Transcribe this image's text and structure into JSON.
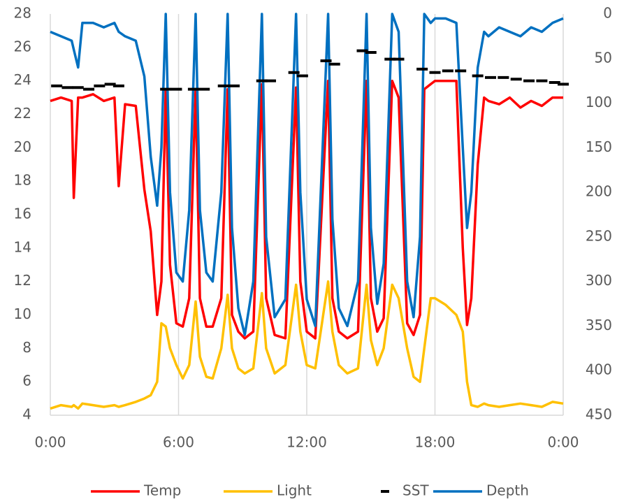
{
  "chart_data": {
    "type": "line",
    "x": [
      0,
      0.5,
      1.0,
      1.1,
      1.3,
      1.5,
      2.0,
      2.5,
      3.0,
      3.2,
      3.5,
      4.0,
      4.4,
      4.7,
      5.0,
      5.2,
      5.4,
      5.6,
      5.9,
      6.2,
      6.5,
      6.8,
      7.0,
      7.3,
      7.6,
      8.0,
      8.3,
      8.5,
      8.8,
      9.1,
      9.5,
      9.9,
      10.1,
      10.5,
      11.0,
      11.5,
      11.7,
      12.0,
      12.4,
      13.0,
      13.2,
      13.5,
      13.9,
      14.4,
      14.8,
      15.0,
      15.3,
      15.6,
      16.0,
      16.3,
      16.7,
      17.0,
      17.3,
      17.5,
      17.8,
      18.0,
      18.5,
      19.0,
      19.3,
      19.5,
      19.7,
      20.0,
      20.3,
      20.5,
      21.0,
      21.5,
      22.0,
      22.5,
      23.0,
      23.5,
      24.0
    ],
    "series": [
      {
        "name": "Temp",
        "color": "#ff0000",
        "values": [
          22.8,
          23,
          22.8,
          17,
          23,
          23,
          23.2,
          22.8,
          23,
          17.7,
          22.6,
          22.5,
          17.5,
          15,
          10,
          12,
          23.5,
          13,
          9.5,
          9.3,
          11,
          23.5,
          11,
          9.3,
          9.3,
          11,
          23.5,
          10,
          9,
          8.6,
          9,
          23.8,
          11,
          8.8,
          8.6,
          23.6,
          12,
          9,
          8.6,
          24,
          11,
          9,
          8.6,
          9,
          24,
          11,
          9,
          9.8,
          24,
          23,
          9.5,
          8.8,
          10,
          23.5,
          23.8,
          24,
          24,
          24,
          14,
          9.4,
          11,
          19,
          23,
          22.8,
          22.6,
          23,
          22.4,
          22.8,
          22.5,
          23,
          23
        ]
      },
      {
        "name": "Light",
        "color": "#ffc000",
        "values": [
          4.4,
          4.6,
          4.5,
          4.6,
          4.4,
          4.7,
          4.6,
          4.5,
          4.6,
          4.5,
          4.6,
          4.8,
          5,
          5.2,
          6,
          9.5,
          9.3,
          8,
          7,
          6.2,
          7,
          10.8,
          7.5,
          6.3,
          6.2,
          8,
          11.2,
          8,
          6.8,
          6.5,
          6.8,
          11.3,
          8,
          6.5,
          7,
          11.8,
          9,
          7,
          6.8,
          12,
          9,
          7,
          6.5,
          6.8,
          11.8,
          8.5,
          7,
          8,
          11.8,
          11,
          8,
          6.3,
          6,
          8,
          11,
          11,
          10.6,
          10,
          9,
          6,
          4.6,
          4.5,
          4.7,
          4.6,
          4.5,
          4.6,
          4.7,
          4.6,
          4.5,
          4.8,
          4.7
        ]
      },
      {
        "name": "SST",
        "color": "#000000",
        "marker": "dash",
        "x": [
          0.3,
          0.8,
          1.3,
          1.8,
          2.3,
          2.8,
          3.2,
          5.4,
          5.9,
          6.7,
          7.2,
          8.1,
          8.6,
          9.9,
          10.3,
          11.4,
          11.8,
          12.9,
          13.3,
          14.6,
          15.0,
          15.9,
          16.3,
          17.4,
          18.0,
          18.6,
          19.2,
          20.0,
          20.6,
          21.2,
          21.8,
          22.4,
          23.0,
          23.6,
          24.0
        ],
        "values": [
          23.7,
          23.6,
          23.6,
          23.5,
          23.7,
          23.8,
          23.7,
          23.5,
          23.5,
          23.5,
          23.5,
          23.7,
          23.7,
          24.0,
          24.0,
          24.5,
          24.3,
          25.2,
          25.0,
          25.8,
          25.7,
          25.3,
          25.3,
          24.7,
          24.5,
          24.6,
          24.6,
          24.3,
          24.2,
          24.2,
          24.1,
          24.0,
          24.0,
          23.9,
          23.8
        ]
      },
      {
        "name": "Depth",
        "color": "#0070c0",
        "axis": "y2",
        "values": [
          20,
          25,
          30,
          40,
          60,
          10,
          10,
          15,
          10,
          20,
          25,
          30,
          70,
          160,
          215,
          150,
          0,
          200,
          290,
          300,
          220,
          0,
          220,
          290,
          300,
          200,
          0,
          240,
          330,
          360,
          300,
          0,
          250,
          340,
          320,
          0,
          200,
          320,
          350,
          0,
          230,
          330,
          350,
          300,
          0,
          240,
          325,
          280,
          0,
          20,
          300,
          340,
          250,
          0,
          10,
          5,
          5,
          10,
          150,
          240,
          200,
          60,
          20,
          25,
          15,
          20,
          25,
          15,
          20,
          10,
          5
        ]
      }
    ],
    "xlim": [
      0,
      24
    ],
    "xticks": [
      {
        "value": 0,
        "label": "0:00"
      },
      {
        "value": 6,
        "label": "6:00"
      },
      {
        "value": 12,
        "label": "12:00"
      },
      {
        "value": 18,
        "label": "18:00"
      },
      {
        "value": 24,
        "label": "0:00"
      }
    ],
    "ylim": [
      4,
      28
    ],
    "yticks": [
      4,
      6,
      8,
      10,
      12,
      14,
      16,
      18,
      20,
      22,
      24,
      26,
      28
    ],
    "y2lim": [
      0,
      450
    ],
    "y2_inverted": true,
    "y2ticks": [
      0,
      50,
      100,
      150,
      200,
      250,
      300,
      350,
      400,
      450
    ],
    "grid": "x",
    "legend": "bottom"
  }
}
